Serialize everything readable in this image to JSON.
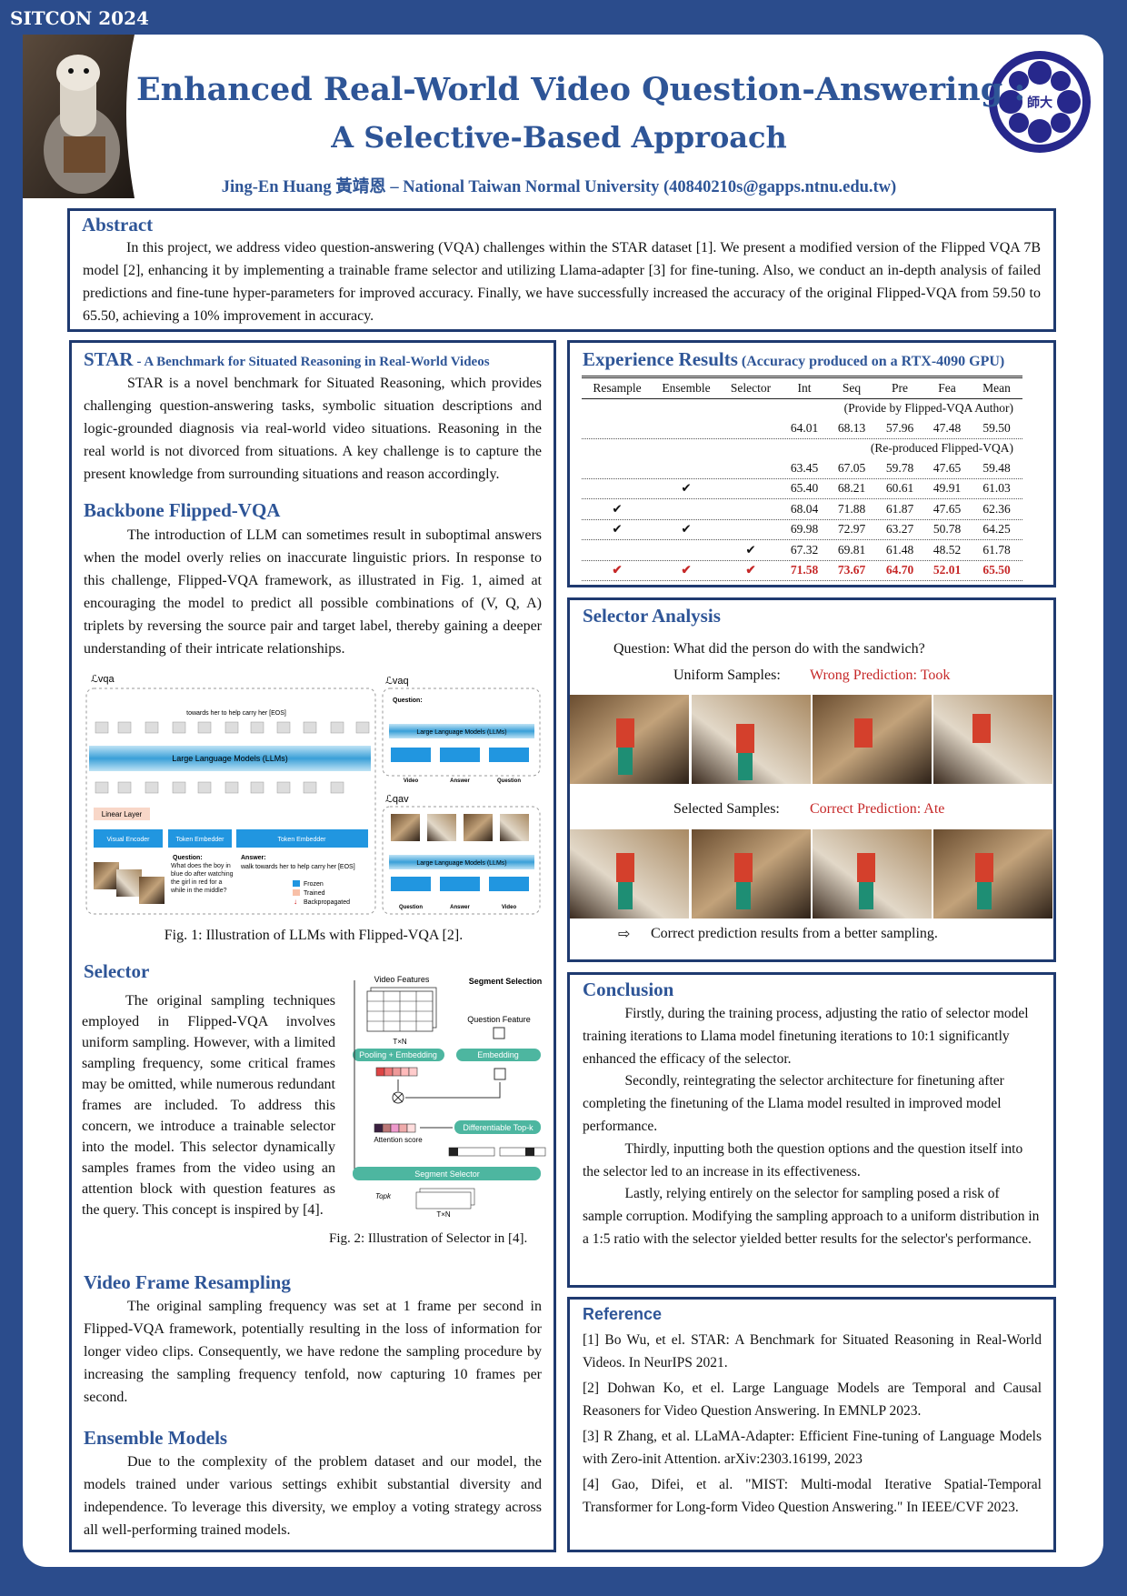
{
  "header": {
    "event": "SITCON 2024",
    "title_line1": "Enhanced Real-World Video Question-Answering :",
    "title_line2": "A Selective-Based Approach",
    "authors": "Jing-En Huang 黃靖恩 – National Taiwan Normal University (40840210s@gapps.ntnu.edu.tw)",
    "logo_text": "師大"
  },
  "abstract": {
    "heading": "Abstract",
    "text": "In this project, we address video question-answering (VQA) challenges within the STAR dataset [1]. We present a modified version of the Flipped VQA 7B model [2], enhancing it by implementing a trainable frame selector and utilizing Llama-adapter [3] for fine-tuning. Also, we conduct an in-depth analysis of failed predictions and fine-tune hyper-parameters for improved accuracy. Finally, we have successfully increased the accuracy of the original Flipped-VQA from 59.50 to 65.50, achieving a 10% improvement in accuracy."
  },
  "star": {
    "heading": "STAR",
    "subheading": "- A Benchmark for Situated Reasoning in Real-World Videos",
    "text": "STAR is a novel benchmark for Situated Reasoning, which provides challenging question-answering tasks, symbolic situation descriptions and logic-grounded diagnosis via real-world video situations. Reasoning in the real world is not divorced from situations. A key challenge is to capture the present knowledge from surrounding situations and reason accordingly."
  },
  "backbone": {
    "heading": "Backbone Flipped-VQA",
    "text": "The introduction of LLM can sometimes result in suboptimal answers when the model overly relies on inaccurate linguistic priors. In response to this challenge, Flipped-VQA framework, as illustrated in Fig. 1, aimed at encouraging the model to predict all possible combinations of (V, Q, A) triplets by reversing the source pair and target label, thereby gaining a deeper understanding of their intricate relationships."
  },
  "figure1": {
    "loss_vqa": "ℒvqa",
    "loss_vaq": "ℒvaq",
    "loss_qav": "ℒqav",
    "llm": "Large Language Models (LLMs)",
    "linear_layer": "Linear Layer",
    "visual_encoder": "Visual Encoder",
    "token_embedder": "Token Embedder",
    "answer_tokens": "towards her to help carry her [EOS]",
    "question_label": "Question:",
    "question_text": "What does the boy in blue do after watching the girl in red for a while in the middle?",
    "answer_label": "Answer:",
    "answer_text": "walk towards her to help carry her [EOS]",
    "legend_frozen": "Frozen",
    "legend_trained": "Trained",
    "legend_backprop": "Backpropagated",
    "video": "Video",
    "answer": "Answer",
    "question": "Question",
    "caption": "Fig. 1: Illustration of LLMs with Flipped-VQA [2]."
  },
  "selector": {
    "heading": "Selector",
    "text": "The original sampling techniques employed in Flipped-VQA involves uniform sampling. However, with a limited sampling frequency, some critical frames may be omitted, while numerous redundant frames are included. To address this concern, we introduce a trainable selector into the model. This selector dynamically samples frames from the video using an attention block with question features as the query. This concept is inspired by [4].",
    "figure2": {
      "video_features": "Video Features",
      "segment_selection": "Segment Selection",
      "question_feature": "Question Feature",
      "pooling": "Pooling + Embedding",
      "embedding": "Embedding",
      "attention_score": "Attention score",
      "topk": "Differentiable Top-k",
      "segment_selector": "Segment Selector",
      "top_k_label": "Topk",
      "txn": "T×N",
      "caption": "Fig. 2: Illustration of Selector in [4]."
    }
  },
  "resampling": {
    "heading": "Video Frame Resampling",
    "text": "The original sampling frequency was set at 1 frame per second in Flipped-VQA framework, potentially resulting in the loss of information for longer video clips. Consequently, we have redone the sampling procedure by increasing the sampling frequency tenfold, now capturing 10 frames per second."
  },
  "ensemble": {
    "heading": "Ensemble Models",
    "text": "Due to the complexity of the problem dataset and our model, the models trained under various settings exhibit substantial diversity and independence. To leverage this diversity, we employ a voting strategy across all well-performing trained models."
  },
  "results": {
    "heading": "Experience Results",
    "note": "(Accuracy produced on a RTX-4090 GPU)",
    "table": {
      "columns": [
        "Resample",
        "Ensemble",
        "Selector",
        "Int",
        "Seq",
        "Pre",
        "Fea",
        "Mean"
      ],
      "sections": [
        {
          "note": "(Provide by Flipped-VQA Author)",
          "rows": [
            [
              null,
              null,
              null,
              "64.01",
              "68.13",
              "57.96",
              "47.48",
              "59.50"
            ]
          ]
        },
        {
          "note": "(Re-produced Flipped-VQA)",
          "rows": [
            [
              null,
              null,
              null,
              "63.45",
              "67.05",
              "59.78",
              "47.65",
              "59.48"
            ],
            [
              null,
              "✔",
              null,
              "65.40",
              "68.21",
              "60.61",
              "49.91",
              "61.03"
            ],
            [
              "✔",
              null,
              null,
              "68.04",
              "71.88",
              "61.87",
              "47.65",
              "62.36"
            ],
            [
              "✔",
              "✔",
              null,
              "69.98",
              "72.97",
              "63.27",
              "50.78",
              "64.25"
            ],
            [
              null,
              null,
              "✔",
              "67.32",
              "69.81",
              "61.48",
              "48.52",
              "61.78"
            ],
            [
              "✔",
              "✔",
              "✔",
              "71.58",
              "73.67",
              "64.70",
              "52.01",
              "65.50"
            ]
          ]
        }
      ]
    }
  },
  "selector_analysis": {
    "heading": "Selector Analysis",
    "question": "Question: What did the person do with the sandwich?",
    "uniform_label": "Uniform Samples:",
    "uniform_prediction": "Wrong Prediction: Took",
    "selected_label": "Selected Samples:",
    "selected_prediction": "Correct Prediction: Ate",
    "arrow": "⇨",
    "conclusion": "Correct prediction results from a better sampling."
  },
  "conclusion": {
    "heading": "Conclusion",
    "paragraphs": [
      "Firstly, during the training process, adjusting the ratio of selector model training iterations to Llama model finetuning iterations to 10:1 significantly enhanced the efficacy of the selector.",
      "Secondly, reintegrating the selector architecture for finetuning after completing the finetuning of the Llama model resulted in improved model performance.",
      "Thirdly, inputting both the question options and the question itself into the selector led to an increase in its effectiveness.",
      "Lastly, relying entirely on the selector for sampling posed a risk of sample corruption. Modifying the sampling approach to a uniform distribution in a 1:5 ratio with the selector yielded better results for the selector's performance."
    ]
  },
  "reference": {
    "heading": "Reference",
    "items": [
      "[1] Bo Wu, et el. STAR: A Benchmark for Situated Reasoning in Real-World Videos. In NeurIPS 2021.",
      "[2] Dohwan Ko, et el. Large Language Models are Temporal and Causal Reasoners for Video Question Answering. In EMNLP 2023.",
      "[3] R Zhang, et al. LLaMA-Adapter: Efficient Fine-tuning of Language Models with Zero-init Attention. arXiv:2303.16199, 2023",
      "[4] Gao, Difei, et al. \"MIST: Multi-modal Iterative Spatial-Temporal Transformer for Long-form Video Question Answering.\" In IEEE/CVF 2023."
    ]
  }
}
